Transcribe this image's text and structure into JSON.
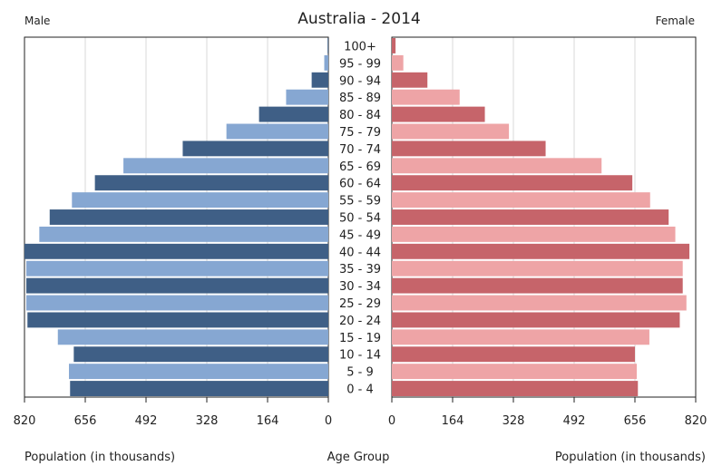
{
  "chart_data": {
    "type": "bar",
    "orientation": "horizontal-pyramid",
    "title": "Australia - 2014",
    "male_label": "Male",
    "female_label": "Female",
    "center_label": "Age Group",
    "x_axis_label_left": "Population (in thousands)",
    "x_axis_label_right": "Population (in thousands)",
    "xlim": [
      0,
      820
    ],
    "ticks": [
      0,
      164,
      328,
      492,
      656,
      820
    ],
    "categories": [
      "0 - 4",
      "5 - 9",
      "10 - 14",
      "15 - 19",
      "20 - 24",
      "25 - 29",
      "30 - 34",
      "35 - 39",
      "40 - 44",
      "45 - 49",
      "50 - 54",
      "55 - 59",
      "60 - 64",
      "65 - 69",
      "70 - 74",
      "75 - 79",
      "80 - 84",
      "85 - 89",
      "90 - 94",
      "95 - 99",
      "100+"
    ],
    "series": [
      {
        "name": "Male",
        "values": [
          697,
          700,
          687,
          730,
          812,
          815,
          815,
          815,
          820,
          780,
          752,
          692,
          630,
          553,
          393,
          275,
          187,
          114,
          45,
          11,
          2
        ]
      },
      {
        "name": "Female",
        "values": [
          664,
          661,
          656,
          695,
          777,
          795,
          785,
          785,
          803,
          765,
          747,
          697,
          649,
          566,
          415,
          316,
          251,
          183,
          96,
          31,
          10
        ]
      }
    ],
    "colors": {
      "male_dark": "#3f5f86",
      "male_light": "#86a7d2",
      "female_dark": "#c6646a",
      "female_light": "#eea4a6"
    },
    "grid": "vertical"
  }
}
